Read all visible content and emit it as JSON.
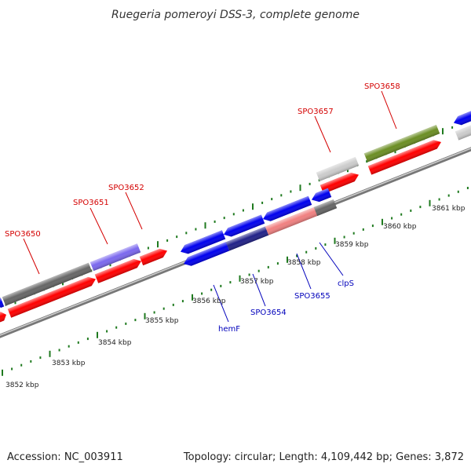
{
  "title": "Ruegeria pomeroyi DSS-3, complete genome",
  "footer": {
    "accession": "Accession: NC_003911",
    "summary": "Topology: circular; Length: 4,109,442 bp; Genes: 3,872"
  },
  "colors": {
    "forward_label": "#d40000",
    "reverse_label": "#0000bb",
    "tick": "#1f7a1f",
    "backbone": "#888888",
    "red": "#ff0000",
    "blue": "#0000ee",
    "purple": "#7b68ee",
    "dark_gray": "#666666",
    "light_gray": "#cccccc",
    "pink": "#f08080",
    "olive": "#6b8e23",
    "navy": "#222288"
  },
  "kbp_labels": [
    "3852 kbp",
    "3853 kbp",
    "3854 kbp",
    "3855 kbp",
    "3856 kbp",
    "3857 kbp",
    "3858 kbp",
    "3859 kbp",
    "3860 kbp",
    "3861 kbp"
  ],
  "gene_labels_forward": [
    "SPO3650",
    "SPO3651",
    "SPO3652",
    "SPO3657",
    "SPO3658"
  ],
  "gene_labels_reverse": [
    "hemF",
    "SPO3654",
    "SPO3655",
    "clpS"
  ]
}
